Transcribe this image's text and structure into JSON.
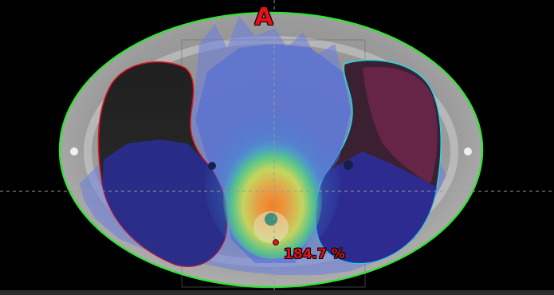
{
  "viewer": {
    "orientation_label": "A",
    "dose_readout": "184.7 %"
  },
  "colors": {
    "body_contour": "#39e03a",
    "left_lung_contour": "#e0121c",
    "right_lung_contour": "#21d8e8",
    "crosshair": "#9a9a9a",
    "dose_point": "#e0121c"
  }
}
